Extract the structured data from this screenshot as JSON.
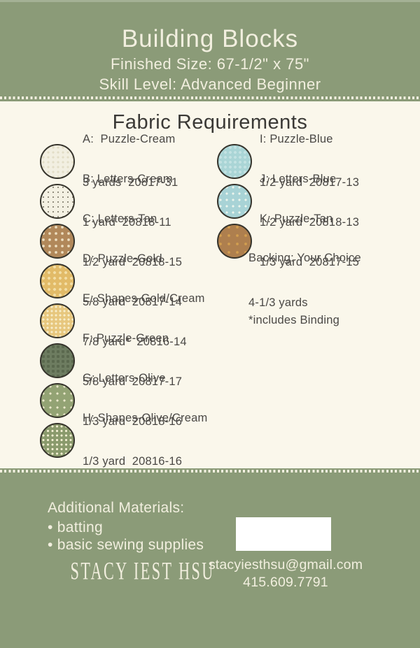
{
  "colors": {
    "band": "#8b9b78",
    "band_text": "#f2efdf",
    "page_bg": "#faf7eb",
    "text": "#4a4845",
    "heading": "#3a3936",
    "white_box": "#ffffff"
  },
  "header": {
    "title": "Building Blocks",
    "finished_size": "Finished Size: 67-1/2\" x 75\"",
    "skill_level": "Skill Level: Advanced Beginner"
  },
  "fabric": {
    "heading": "Fabric Requirements",
    "left_items": [
      {
        "name": "A:  Puzzle-Cream",
        "yardage": "3 yards  20817-31",
        "bg": "#f2efe1",
        "dot": "#e2ddc6",
        "dot_r": 1.6,
        "pitch": 7
      },
      {
        "name": "B: Letters-Cream",
        "yardage": "1 yard  20818-11",
        "bg": "#f4f1e3",
        "dot": "#726d5c",
        "dot_r": 0.9,
        "pitch": 7
      },
      {
        "name": "C: Letters-Tan",
        "yardage": "1/2 yard  20818-15",
        "bg": "#b1885a",
        "dot": "#eddfc1",
        "dot_r": 1.8,
        "pitch": 9
      },
      {
        "name": "D: Puzzle-Gold",
        "yardage": "5/8 yard  20817-14",
        "bg": "#e2bb68",
        "dot": "#f2dda4",
        "dot_r": 2.0,
        "pitch": 8
      },
      {
        "name": "E: Shapes-Gold/Cream",
        "yardage": "7/8 yard*  20816-14",
        "bg": "#e7c77e",
        "dot": "#f7edca",
        "dot_r": 1.6,
        "pitch": 6
      },
      {
        "name": "F: Puzzle-Green",
        "yardage": "5/8 yard  20817-17",
        "bg": "#6d7c60",
        "dot": "#5a684e",
        "dot_r": 2.2,
        "pitch": 7
      },
      {
        "name": "G: Letters-Olive",
        "yardage": "1/3 yard  20818-16",
        "bg": "#93a374",
        "dot": "#eae7ca",
        "dot_r": 1.6,
        "pitch": 10
      },
      {
        "name": "H: Shapes-Olive/Cream",
        "yardage": "1/3 yard  20816-16",
        "bg": "#8a9a6c",
        "dot": "#f0edd0",
        "dot_r": 1.7,
        "pitch": 6.5
      }
    ],
    "right_items": [
      {
        "name": "I: Puzzle-Blue",
        "yardage": "1/2 yard  20817-13",
        "bg": "#aad5d6",
        "dot": "#c3e2e2",
        "dot_r": 2.0,
        "pitch": 7
      },
      {
        "name": "J: Letters-Blue",
        "yardage": "1/2 yard  20818-13",
        "bg": "#a8d3d6",
        "dot": "#ecf4ec",
        "dot_r": 1.5,
        "pitch": 9
      },
      {
        "name": "K: Puzzle-Tan",
        "yardage": "1/3 yard  20817-15",
        "bg": "#ae7f4e",
        "dot": "#d39f4f",
        "dot_r": 1.8,
        "pitch": 12
      }
    ],
    "backing_line1": "Backing: Your Choice",
    "backing_line2": "4-1/3 yards",
    "binding_note": "*includes Binding"
  },
  "footer": {
    "additional_title": "Additional Materials:",
    "bullets": [
      "batting",
      "basic sewing supplies"
    ],
    "logo": "STACY IEST HSU",
    "email": "stacyiesthsu@gmail.com",
    "phone": "415.609.7791"
  }
}
